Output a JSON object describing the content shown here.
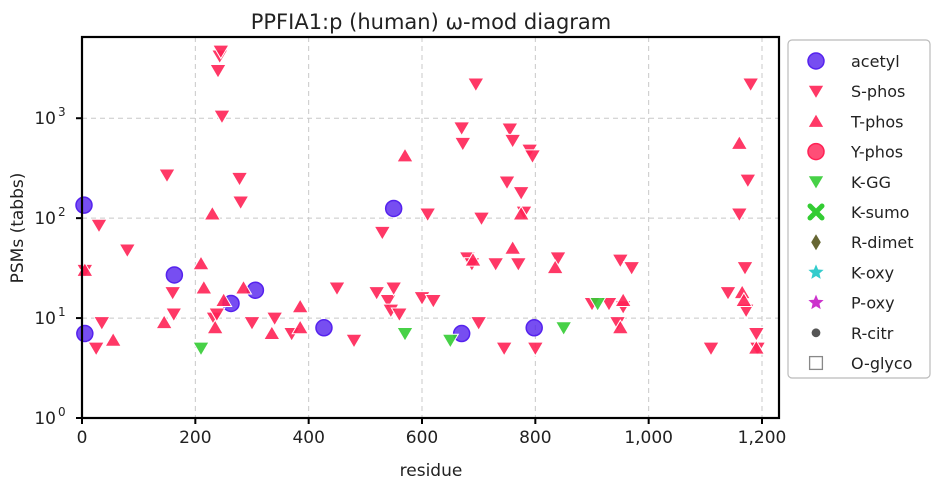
{
  "chart_data": {
    "type": "scatter",
    "title": "PPFIA1:p (human) ω-mod diagram",
    "xlabel": "residue",
    "ylabel": "PSMs (tabbs)",
    "xlim": [
      0,
      1230
    ],
    "ylim": [
      1,
      6500
    ],
    "yscale": "log",
    "grid": true,
    "legend_position": "outside-right",
    "x_ticks": [
      {
        "value": 0,
        "label": "0"
      },
      {
        "value": 200,
        "label": "200"
      },
      {
        "value": 400,
        "label": "400"
      },
      {
        "value": 600,
        "label": "600"
      },
      {
        "value": 800,
        "label": "800"
      },
      {
        "value": 1000,
        "label": "1,000"
      },
      {
        "value": 1200,
        "label": "1,200"
      }
    ],
    "y_ticks": [
      {
        "value": 1,
        "base": "10",
        "exp": "0"
      },
      {
        "value": 10,
        "base": "10",
        "exp": "1"
      },
      {
        "value": 100,
        "base": "10",
        "exp": "2"
      },
      {
        "value": 1000,
        "base": "10",
        "exp": "3"
      }
    ],
    "series": [
      {
        "name": "acetyl",
        "marker": "circle",
        "color": "#5522ee",
        "points": [
          [
            3,
            135
          ],
          [
            5,
            7
          ],
          [
            163,
            27
          ],
          [
            263,
            14
          ],
          [
            306,
            19
          ],
          [
            427,
            8
          ],
          [
            550,
            125
          ],
          [
            670,
            7
          ],
          [
            798,
            8
          ]
        ]
      },
      {
        "name": "S-phos",
        "marker": "triangle-down",
        "color": "#ff2255",
        "points": [
          [
            5,
            30
          ],
          [
            25,
            5
          ],
          [
            30,
            85
          ],
          [
            35,
            9
          ],
          [
            80,
            48
          ],
          [
            150,
            270
          ],
          [
            160,
            18
          ],
          [
            162,
            11
          ],
          [
            233,
            10
          ],
          [
            238,
            11
          ],
          [
            240,
            3000
          ],
          [
            243,
            4200
          ],
          [
            245,
            4700
          ],
          [
            247,
            1050
          ],
          [
            278,
            250
          ],
          [
            280,
            145
          ],
          [
            300,
            9
          ],
          [
            340,
            10
          ],
          [
            370,
            7
          ],
          [
            450,
            20
          ],
          [
            480,
            6
          ],
          [
            520,
            18
          ],
          [
            530,
            72
          ],
          [
            540,
            15
          ],
          [
            545,
            12
          ],
          [
            550,
            20
          ],
          [
            560,
            11
          ],
          [
            600,
            16
          ],
          [
            610,
            110
          ],
          [
            620,
            15
          ],
          [
            670,
            800
          ],
          [
            672,
            560
          ],
          [
            680,
            40
          ],
          [
            688,
            35
          ],
          [
            695,
            2200
          ],
          [
            700,
            9
          ],
          [
            705,
            100
          ],
          [
            730,
            35
          ],
          [
            745,
            5
          ],
          [
            750,
            230
          ],
          [
            755,
            780
          ],
          [
            760,
            600
          ],
          [
            770,
            35
          ],
          [
            775,
            180
          ],
          [
            780,
            115
          ],
          [
            790,
            480
          ],
          [
            795,
            420
          ],
          [
            800,
            5
          ],
          [
            840,
            40
          ],
          [
            900,
            14
          ],
          [
            930,
            14
          ],
          [
            945,
            9
          ],
          [
            950,
            38
          ],
          [
            955,
            13
          ],
          [
            970,
            32
          ],
          [
            1110,
            5
          ],
          [
            1140,
            18
          ],
          [
            1160,
            110
          ],
          [
            1170,
            32
          ],
          [
            1172,
            12
          ],
          [
            1175,
            240
          ],
          [
            1180,
            2200
          ],
          [
            1190,
            7
          ],
          [
            1192,
            5
          ]
        ]
      },
      {
        "name": "T-phos",
        "marker": "triangle-up",
        "color": "#ff2255",
        "points": [
          [
            5,
            30
          ],
          [
            55,
            6
          ],
          [
            145,
            9
          ],
          [
            210,
            35
          ],
          [
            215,
            20
          ],
          [
            230,
            110
          ],
          [
            235,
            8
          ],
          [
            250,
            15
          ],
          [
            285,
            20
          ],
          [
            335,
            7
          ],
          [
            385,
            8
          ],
          [
            385,
            13
          ],
          [
            570,
            420
          ],
          [
            690,
            38
          ],
          [
            760,
            50
          ],
          [
            775,
            110
          ],
          [
            835,
            32
          ],
          [
            950,
            8
          ],
          [
            955,
            15
          ],
          [
            1160,
            560
          ],
          [
            1165,
            18
          ],
          [
            1168,
            15
          ],
          [
            1190,
            5
          ]
        ]
      },
      {
        "name": "Y-phos",
        "marker": "circle",
        "color": "#ff2255",
        "points": []
      },
      {
        "name": "K-GG",
        "marker": "triangle-down",
        "color": "#33cc33",
        "points": [
          [
            210,
            5
          ],
          [
            570,
            7
          ],
          [
            650,
            6
          ],
          [
            850,
            8
          ],
          [
            910,
            14
          ]
        ]
      },
      {
        "name": "K-sumo",
        "marker": "x",
        "color": "#33cc33",
        "points": []
      },
      {
        "name": "R-dimet",
        "marker": "diamond",
        "color": "#666633",
        "points": []
      },
      {
        "name": "K-oxy",
        "marker": "star",
        "color": "#33cccc",
        "points": []
      },
      {
        "name": "P-oxy",
        "marker": "star",
        "color": "#cc33cc",
        "points": []
      },
      {
        "name": "R-citr",
        "marker": "dot",
        "color": "#555555",
        "points": []
      },
      {
        "name": "O-glyco",
        "marker": "square-open",
        "color": "#888888",
        "points": []
      }
    ]
  }
}
